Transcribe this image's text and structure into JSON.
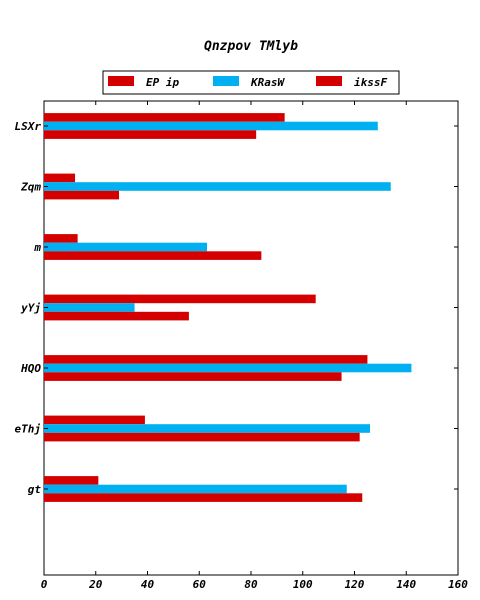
{
  "chart_data": {
    "type": "bar",
    "orientation": "horizontal",
    "title": "Qnzpov TMlyb",
    "xlabel": "",
    "ylabel": "",
    "xlim": [
      0,
      160
    ],
    "x_ticks": [
      0,
      20,
      40,
      60,
      80,
      100,
      120,
      140,
      160
    ],
    "grid": false,
    "legend_position": "top-center",
    "categories": [
      "LSXr",
      "Zqm",
      "m",
      "yYj",
      "HQO",
      "eThj",
      "gt"
    ],
    "series": [
      {
        "name": "EP ip",
        "color": "#d40000",
        "values": [
          93,
          12,
          13,
          105,
          125,
          39,
          21
        ]
      },
      {
        "name": "KRasW",
        "color": "#00b0f0",
        "values": [
          129,
          134,
          63,
          35,
          142,
          126,
          117
        ]
      },
      {
        "name": "ikssF",
        "color": "#d40000",
        "values": [
          82,
          29,
          84,
          56,
          115,
          122,
          123
        ]
      }
    ]
  }
}
